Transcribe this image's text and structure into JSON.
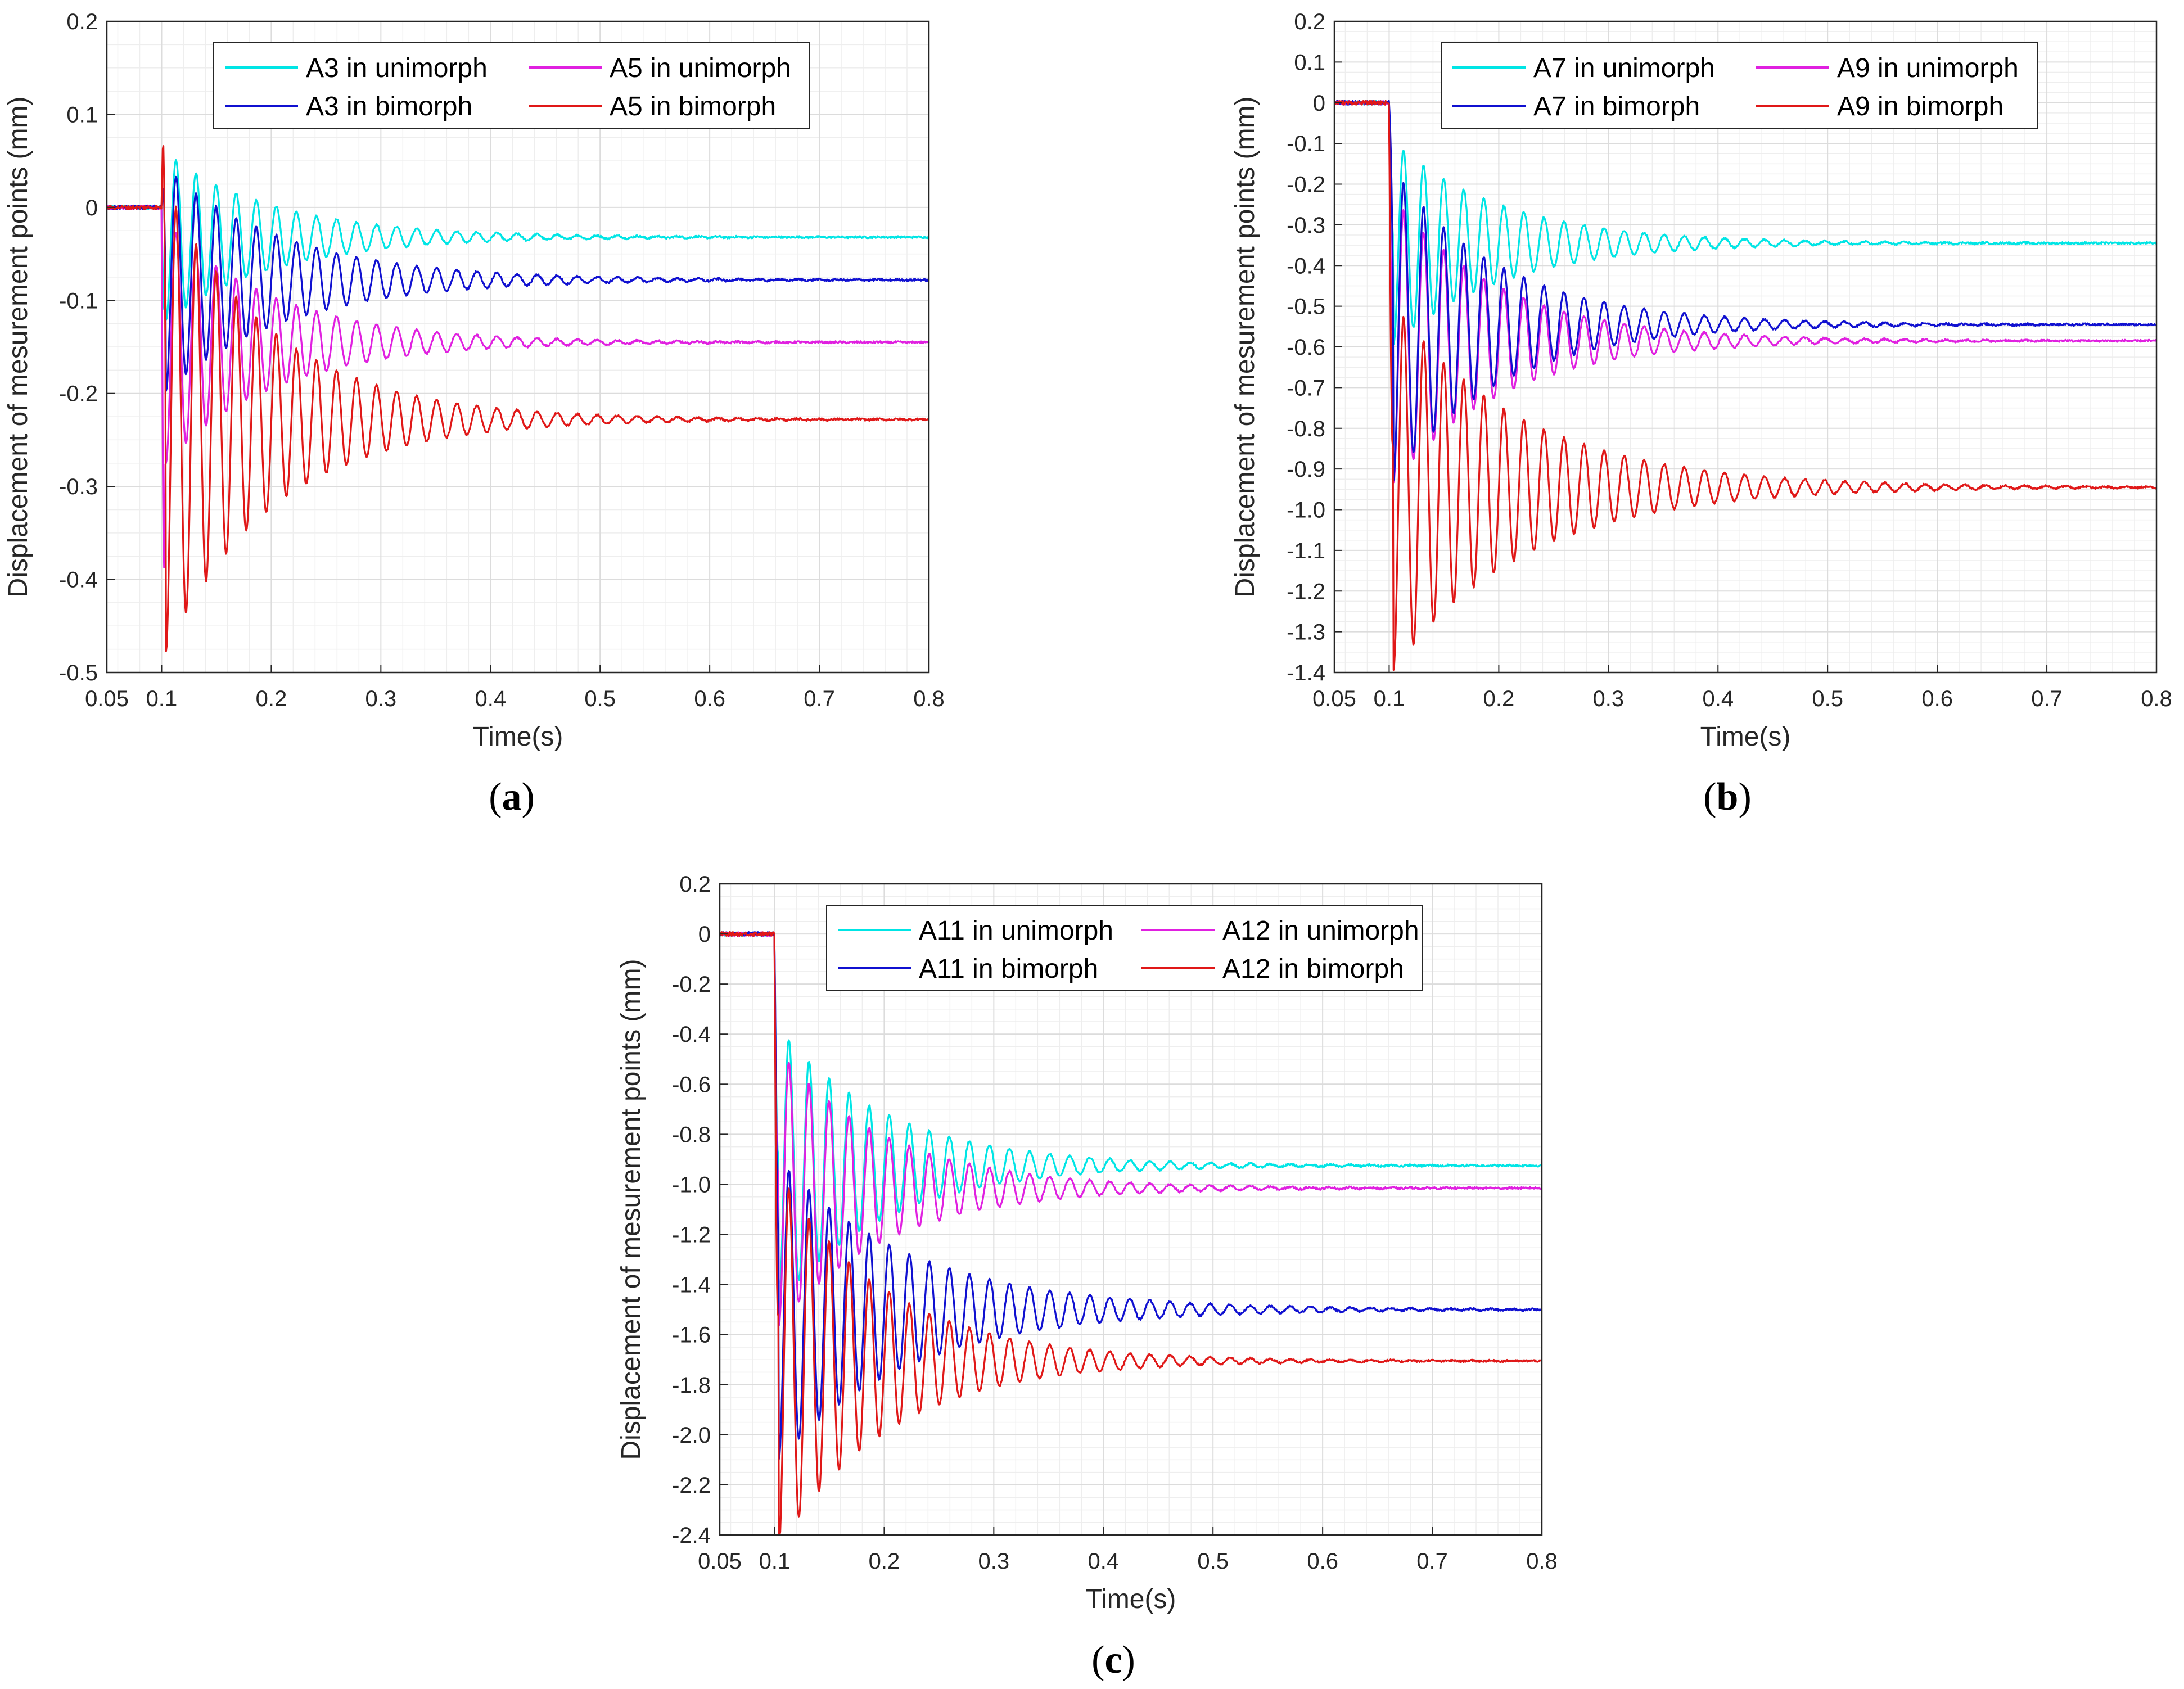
{
  "chart_data": [
    {
      "type": "line",
      "panel_label": "(a)",
      "panel_letter": "a",
      "xlabel": "Time(s)",
      "ylabel": "Displacement of mesurement points (mm)",
      "xlim": [
        0.05,
        0.8
      ],
      "ylim": [
        -0.5,
        0.2
      ],
      "xticks": [
        0.05,
        0.1,
        0.2,
        0.3,
        0.4,
        0.5,
        0.6,
        0.7,
        0.8
      ],
      "xtick_labels": [
        "0.05",
        "0.1",
        "0.2",
        "0.3",
        "0.4",
        "0.5",
        "0.6",
        "0.7",
        "0.8"
      ],
      "yticks": [
        0.2,
        0.1,
        0,
        -0.1,
        -0.2,
        -0.3,
        -0.4,
        -0.5
      ],
      "ytick_labels": [
        "0.2",
        "0.1",
        "0",
        "-0.1",
        "-0.2",
        "-0.3",
        "-0.4",
        "-0.5"
      ],
      "grid": true,
      "legend_position": "top",
      "series": [
        {
          "name": "A3 in unimorph",
          "color": "#00e5e5",
          "final": -0.032,
          "amplitude": 0.09,
          "spike": -0.07,
          "decay": 0.1
        },
        {
          "name": "A3 in bimorph",
          "color": "#1010d0",
          "final": -0.078,
          "amplitude": 0.12,
          "spike": 0.07,
          "decay": 0.11
        },
        {
          "name": "A5 in unimorph",
          "color": "#e020e0",
          "final": -0.145,
          "amplitude": 0.13,
          "spike": -0.3,
          "decay": 0.1
        },
        {
          "name": "A5 in bimorph",
          "color": "#e01818",
          "final": -0.228,
          "amplitude": 0.25,
          "spike": 0.19,
          "decay": 0.1
        }
      ],
      "legend_order": [
        "A3 in unimorph",
        "A5 in unimorph",
        "A3 in bimorph",
        "A5 in bimorph"
      ]
    },
    {
      "type": "line",
      "panel_label": "(b)",
      "panel_letter": "b",
      "xlabel": "Time(s)",
      "ylabel": "Displacement of mesurement points (mm)",
      "xlim": [
        0.05,
        0.8
      ],
      "ylim": [
        -1.4,
        0.2
      ],
      "xticks": [
        0.05,
        0.1,
        0.2,
        0.3,
        0.4,
        0.5,
        0.6,
        0.7,
        0.8
      ],
      "xtick_labels": [
        "0.05",
        "0.1",
        "0.2",
        "0.3",
        "0.4",
        "0.5",
        "0.6",
        "0.7",
        "0.8"
      ],
      "yticks": [
        0.2,
        0.1,
        0,
        -0.1,
        -0.2,
        -0.3,
        -0.4,
        -0.5,
        -0.6,
        -0.7,
        -0.8,
        -0.9,
        -1.0,
        -1.1,
        -1.2,
        -1.3,
        -1.4
      ],
      "ytick_labels": [
        "0.2",
        "0.1",
        "0",
        "-0.1",
        "-0.2",
        "-0.3",
        "-0.4",
        "-0.5",
        "-0.6",
        "-0.7",
        "-0.8",
        "-0.9",
        "-1.0",
        "-1.1",
        "-1.2",
        "-1.3",
        "-1.4"
      ],
      "grid": true,
      "legend_position": "top",
      "series": [
        {
          "name": "A7 in unimorph",
          "color": "#00e5e5",
          "final": -0.345,
          "amplitude": 0.25,
          "spike": -0.05,
          "decay": 0.1
        },
        {
          "name": "A7 in bimorph",
          "color": "#1010d0",
          "final": -0.545,
          "amplitude": 0.38,
          "spike": 0.1,
          "decay": 0.1
        },
        {
          "name": "A9 in unimorph",
          "color": "#e020e0",
          "final": -0.585,
          "amplitude": 0.35,
          "spike": -0.2,
          "decay": 0.1
        },
        {
          "name": "A9 in bimorph",
          "color": "#e01818",
          "final": -0.945,
          "amplitude": 0.45,
          "spike": -0.3,
          "decay": 0.12
        }
      ],
      "legend_order": [
        "A7 in unimorph",
        "A9 in unimorph",
        "A7 in bimorph",
        "A9 in bimorph"
      ]
    },
    {
      "type": "line",
      "panel_label": "(c)",
      "panel_letter": "c",
      "xlabel": "Time(s)",
      "ylabel": "Displacement of mesurement points (mm)",
      "xlim": [
        0.05,
        0.8
      ],
      "ylim": [
        -2.4,
        0.2
      ],
      "xticks": [
        0.05,
        0.1,
        0.2,
        0.3,
        0.4,
        0.5,
        0.6,
        0.7,
        0.8
      ],
      "xtick_labels": [
        "0.05",
        "0.1",
        "0.2",
        "0.3",
        "0.4",
        "0.5",
        "0.6",
        "0.7",
        "0.8"
      ],
      "yticks": [
        0.2,
        0,
        -0.2,
        -0.4,
        -0.6,
        -0.8,
        -1.0,
        -1.2,
        -1.4,
        -1.6,
        -1.8,
        -2.0,
        -2.2,
        -2.4
      ],
      "ytick_labels": [
        "0.2",
        "0",
        "-0.2",
        "-0.4",
        "-0.6",
        "-0.8",
        "-1.0",
        "-1.2",
        "-1.4",
        "-1.6",
        "-1.8",
        "-2.0",
        "-2.2",
        "-2.4"
      ],
      "grid": true,
      "legend_position": "top",
      "series": [
        {
          "name": "A11 in unimorph",
          "color": "#00e5e5",
          "final": -0.925,
          "amplitude": 0.55,
          "spike": -0.3,
          "decay": 0.1
        },
        {
          "name": "A11 in bimorph",
          "color": "#1010d0",
          "final": -1.5,
          "amplitude": 0.6,
          "spike": -0.3,
          "decay": 0.12
        },
        {
          "name": "A12 in unimorph",
          "color": "#e020e0",
          "final": -1.015,
          "amplitude": 0.55,
          "spike": -0.35,
          "decay": 0.1
        },
        {
          "name": "A12 in bimorph",
          "color": "#e01818",
          "final": -1.705,
          "amplitude": 0.75,
          "spike": -0.6,
          "decay": 0.1
        }
      ],
      "legend_order": [
        "A11 in unimorph",
        "A12 in unimorph",
        "A11 in bimorph",
        "A12 in bimorph"
      ]
    }
  ]
}
